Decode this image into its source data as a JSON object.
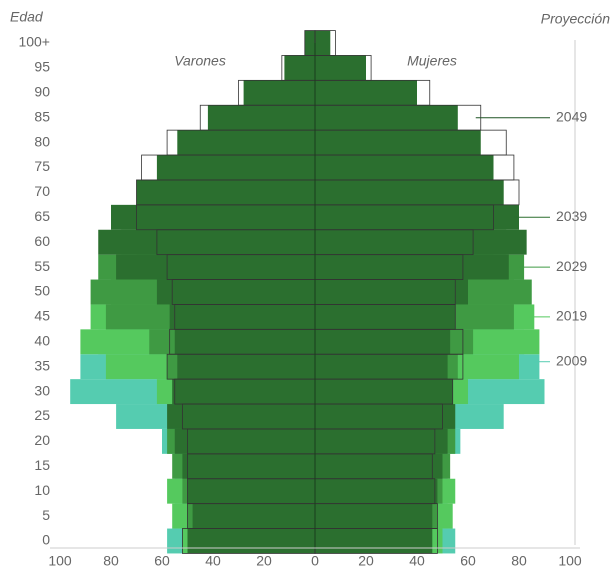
{
  "chart_data": {
    "type": "pyramid",
    "y_label": "Edad",
    "corner_label": "Proyección",
    "left_label": "Varones",
    "right_label": "Mujeres",
    "categories": [
      "0",
      "5",
      "10",
      "15",
      "20",
      "25",
      "30",
      "35",
      "40",
      "45",
      "50",
      "55",
      "60",
      "65",
      "70",
      "75",
      "80",
      "85",
      "90",
      "95",
      "100+"
    ],
    "xlim": [
      0,
      100
    ],
    "xticks": [
      0,
      20,
      40,
      60,
      80,
      100
    ],
    "series": [
      {
        "name": "2009",
        "color": "#55ccb0",
        "male": [
          58,
          55,
          52,
          55,
          60,
          78,
          96,
          92,
          85,
          80,
          70,
          62,
          58,
          50,
          45,
          40,
          32,
          20,
          10,
          4,
          1
        ],
        "female": [
          55,
          52,
          50,
          52,
          57,
          74,
          90,
          88,
          82,
          78,
          70,
          64,
          60,
          55,
          52,
          50,
          45,
          35,
          20,
          8,
          2
        ]
      },
      {
        "name": "2019",
        "color": "#55c95e",
        "male": [
          52,
          56,
          58,
          52,
          52,
          55,
          62,
          82,
          92,
          88,
          80,
          70,
          65,
          58,
          52,
          45,
          38,
          28,
          15,
          6,
          2
        ],
        "female": [
          50,
          54,
          55,
          50,
          50,
          53,
          60,
          80,
          88,
          86,
          78,
          70,
          66,
          62,
          58,
          55,
          50,
          42,
          28,
          12,
          3
        ]
      },
      {
        "name": "2029",
        "color": "#3f9a43",
        "male": [
          48,
          50,
          52,
          56,
          58,
          54,
          54,
          58,
          65,
          82,
          88,
          85,
          76,
          68,
          60,
          52,
          45,
          35,
          22,
          10,
          3
        ],
        "female": [
          45,
          48,
          50,
          53,
          55,
          51,
          52,
          56,
          62,
          78,
          85,
          82,
          75,
          70,
          66,
          62,
          57,
          48,
          34,
          16,
          5
        ]
      },
      {
        "name": "2039",
        "color": "#2b6f2f",
        "male": [
          50,
          48,
          50,
          52,
          55,
          58,
          56,
          54,
          55,
          57,
          62,
          78,
          85,
          80,
          70,
          62,
          54,
          42,
          28,
          12,
          4
        ],
        "female": [
          46,
          46,
          48,
          50,
          52,
          55,
          54,
          52,
          53,
          55,
          60,
          76,
          83,
          80,
          74,
          70,
          65,
          56,
          40,
          20,
          6
        ]
      },
      {
        "name": "2049",
        "color": "#1f5423",
        "style": "outline",
        "male": [
          52,
          50,
          50,
          50,
          50,
          52,
          55,
          58,
          57,
          55,
          56,
          58,
          62,
          70,
          70,
          68,
          58,
          45,
          30,
          13,
          4
        ],
        "female": [
          48,
          48,
          47,
          46,
          47,
          50,
          54,
          58,
          58,
          55,
          55,
          58,
          62,
          70,
          80,
          78,
          75,
          65,
          45,
          22,
          8
        ]
      }
    ]
  }
}
